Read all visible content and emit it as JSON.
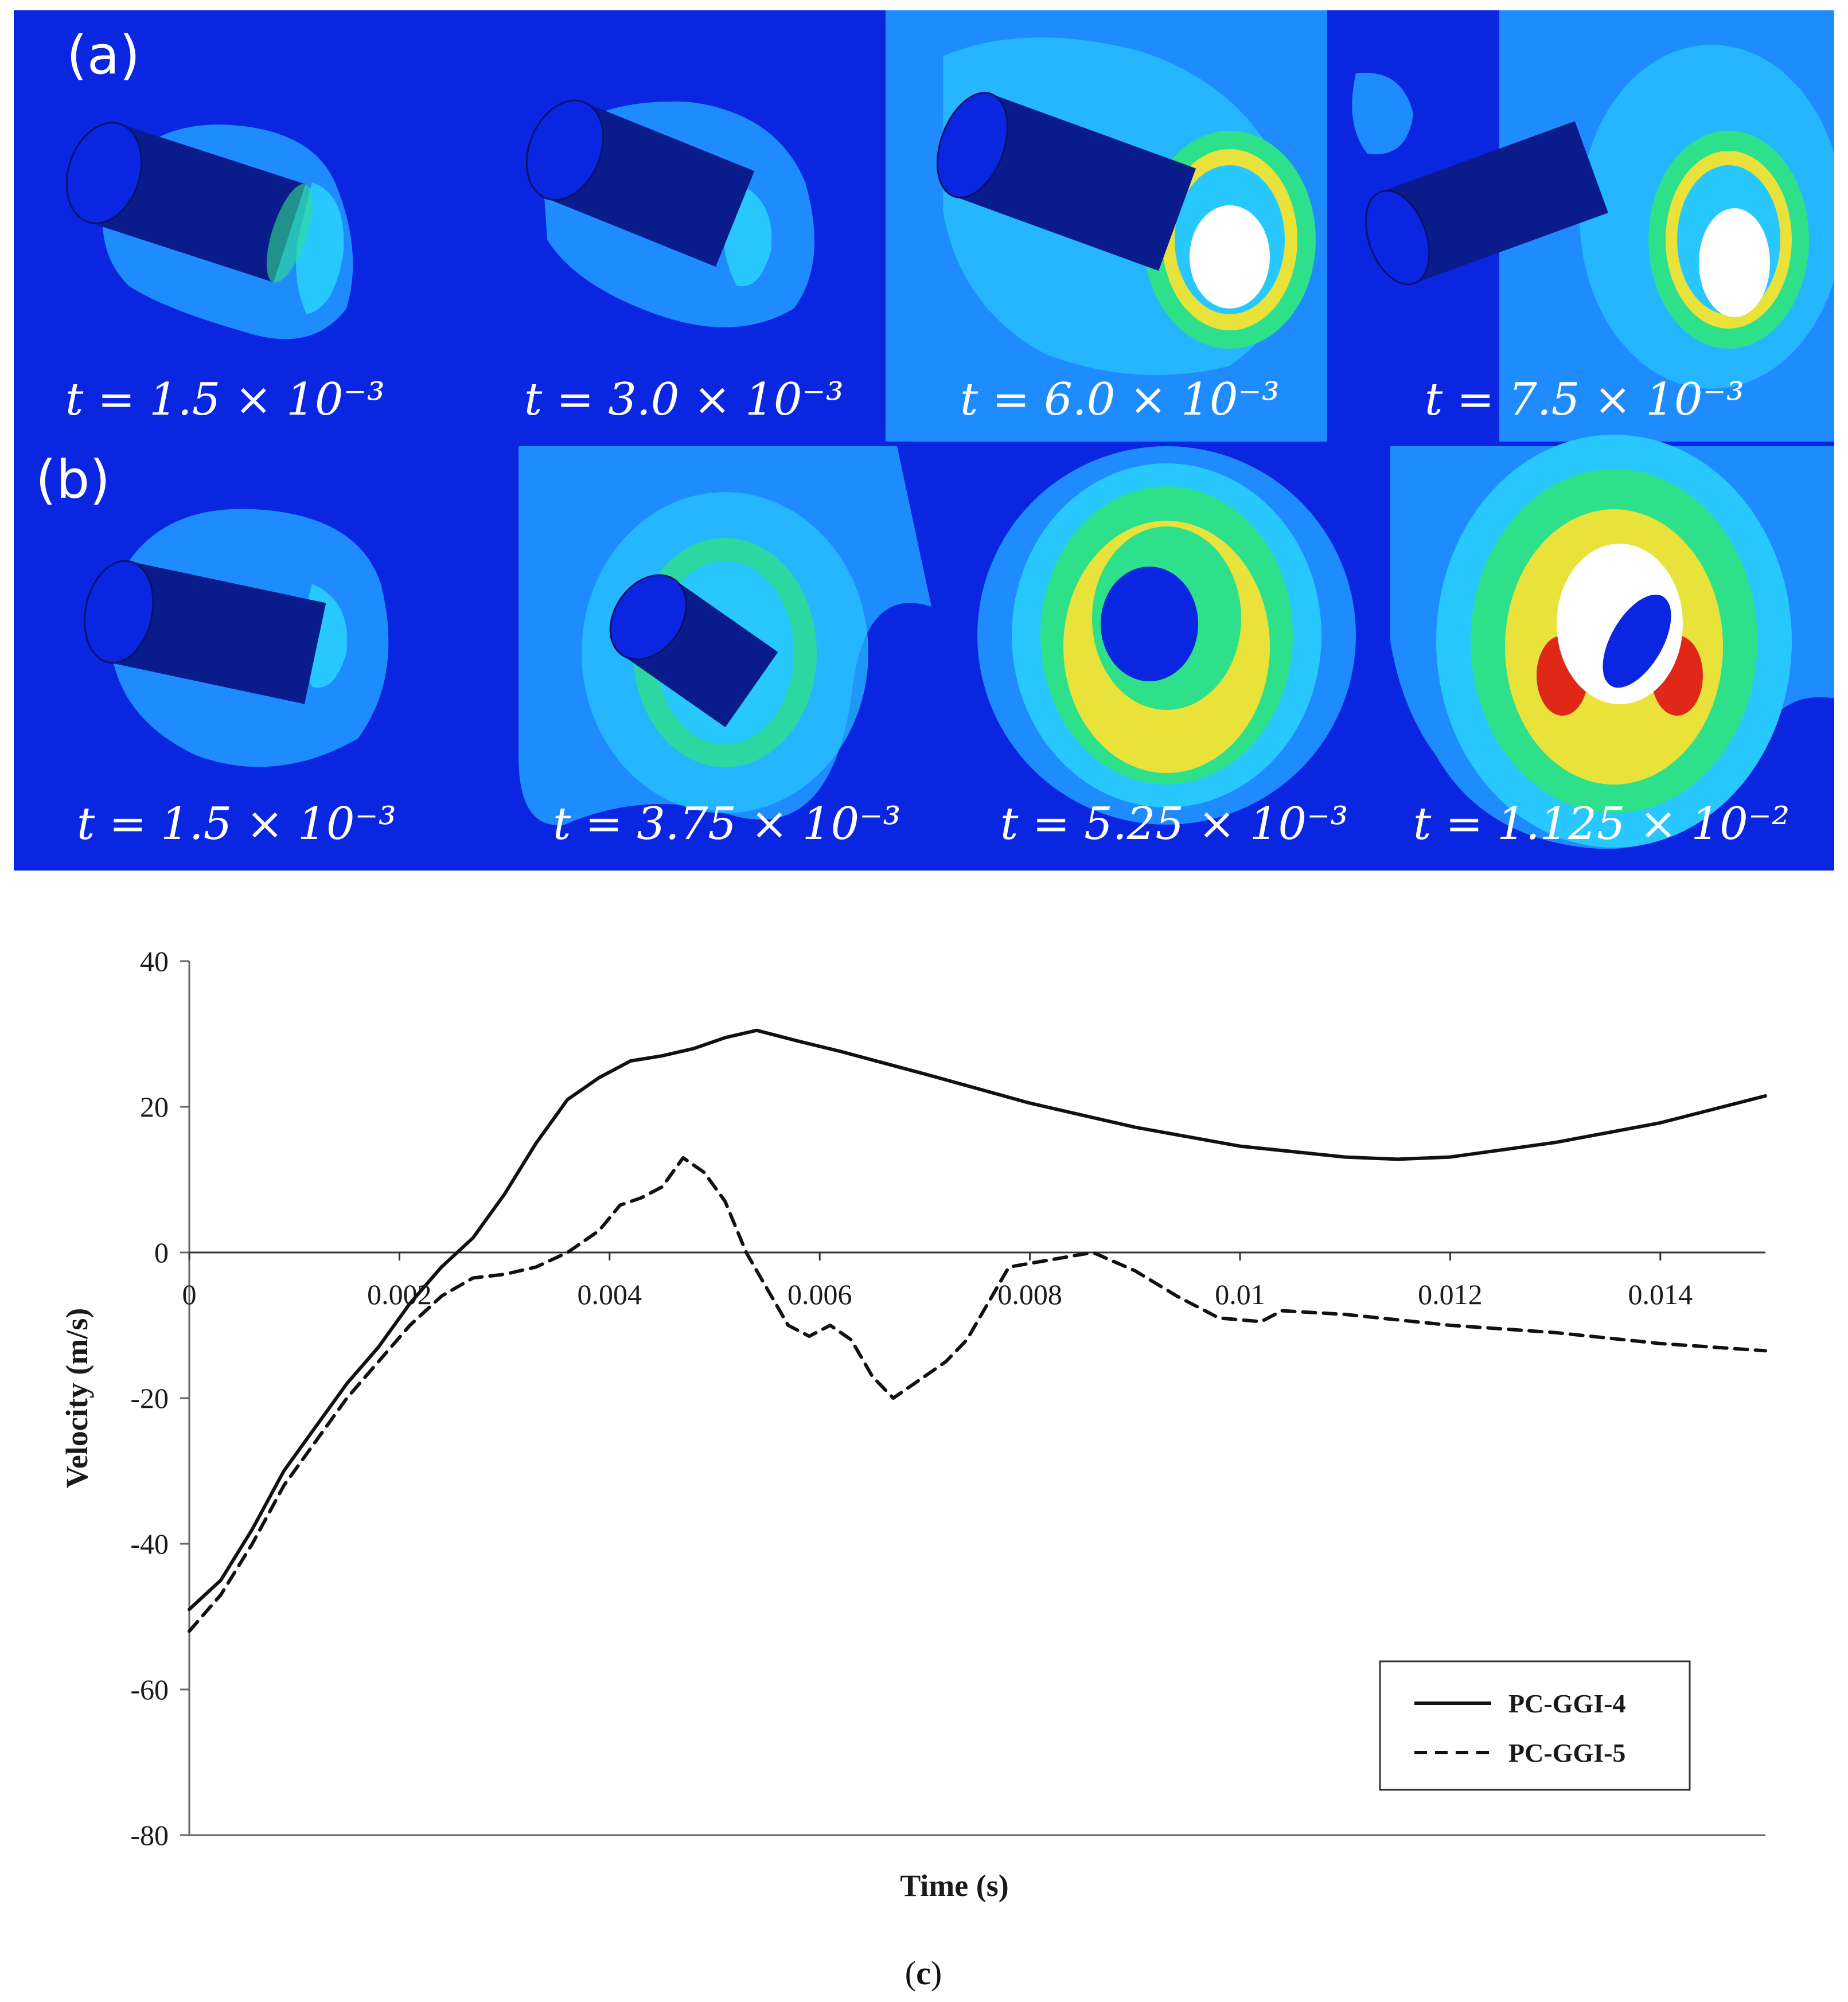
{
  "panels": {
    "a": {
      "tag": "(a)",
      "frames": [
        {
          "time_label": "t = 1.5 × 10⁻³"
        },
        {
          "time_label": "t = 3.0 × 10⁻³"
        },
        {
          "time_label": "t = 6.0 × 10⁻³"
        },
        {
          "time_label": "t = 7.5 × 10⁻³"
        }
      ]
    },
    "b": {
      "tag": "(b)",
      "frames": [
        {
          "time_label": "t = 1.5 × 10⁻³"
        },
        {
          "time_label": "t = 3.75 × 10⁻³"
        },
        {
          "time_label": "t = 5.25 × 10⁻³"
        },
        {
          "time_label": "t = 1.125 × 10⁻²"
        }
      ]
    },
    "c": {
      "caption_open": "(",
      "caption_letter": "c",
      "caption_close": ")"
    }
  },
  "colors": {
    "background_blue": "#0a26e0",
    "contour_light": "#1e8cff",
    "contour_cyan": "#28c8ff",
    "contour_green": "#2ee08a",
    "contour_yellow": "#e8e23a",
    "contour_red": "#e02818",
    "projectile": "#0a1c8c"
  },
  "chart_data": {
    "type": "line",
    "xlabel": "Time (s)",
    "ylabel": "Velocity (m/s)",
    "xlim": [
      0,
      0.015
    ],
    "ylim": [
      -80,
      40
    ],
    "xticks": [
      {
        "value": 0,
        "label": "0"
      },
      {
        "value": 0.002,
        "label": "0.002"
      },
      {
        "value": 0.004,
        "label": "0.004"
      },
      {
        "value": 0.006,
        "label": "0.006"
      },
      {
        "value": 0.008,
        "label": "0.008"
      },
      {
        "value": 0.01,
        "label": "0.01"
      },
      {
        "value": 0.012,
        "label": "0.012"
      },
      {
        "value": 0.014,
        "label": "0.014"
      }
    ],
    "yticks": [
      {
        "value": 40,
        "label": "40"
      },
      {
        "value": 20,
        "label": "20"
      },
      {
        "value": 0,
        "label": "0"
      },
      {
        "value": -20,
        "label": "-20"
      },
      {
        "value": -40,
        "label": "-40"
      },
      {
        "value": -60,
        "label": "-60"
      },
      {
        "value": -80,
        "label": "-80"
      }
    ],
    "legend_position": "bottom-right",
    "series": [
      {
        "name": "PC-GGI-4",
        "style": "solid",
        "points": [
          [
            0,
            -49
          ],
          [
            0.0003,
            -45
          ],
          [
            0.0006,
            -38
          ],
          [
            0.0009,
            -30
          ],
          [
            0.0012,
            -24
          ],
          [
            0.0015,
            -18
          ],
          [
            0.0018,
            -13
          ],
          [
            0.0021,
            -7
          ],
          [
            0.0024,
            -2
          ],
          [
            0.0027,
            2
          ],
          [
            0.003,
            8
          ],
          [
            0.0033,
            15
          ],
          [
            0.0036,
            21
          ],
          [
            0.0039,
            24
          ],
          [
            0.0042,
            26.3
          ],
          [
            0.0045,
            27
          ],
          [
            0.0048,
            28
          ],
          [
            0.0051,
            29.5
          ],
          [
            0.0054,
            30.5
          ],
          [
            0.0058,
            29
          ],
          [
            0.0062,
            27.6
          ],
          [
            0.007,
            24.5
          ],
          [
            0.008,
            20.5
          ],
          [
            0.009,
            17.2
          ],
          [
            0.01,
            14.6
          ],
          [
            0.011,
            13.1
          ],
          [
            0.0115,
            12.8
          ],
          [
            0.012,
            13.1
          ],
          [
            0.013,
            15.1
          ],
          [
            0.014,
            17.8
          ],
          [
            0.015,
            21.5
          ]
        ]
      },
      {
        "name": "PC-GGI-5",
        "style": "dashed",
        "points": [
          [
            0,
            -52
          ],
          [
            0.0003,
            -47
          ],
          [
            0.0006,
            -40
          ],
          [
            0.0009,
            -32
          ],
          [
            0.0012,
            -26
          ],
          [
            0.0015,
            -20
          ],
          [
            0.0018,
            -15
          ],
          [
            0.0021,
            -10
          ],
          [
            0.0024,
            -6
          ],
          [
            0.0027,
            -3.5
          ],
          [
            0.003,
            -3
          ],
          [
            0.0033,
            -2
          ],
          [
            0.0036,
            0
          ],
          [
            0.0039,
            3
          ],
          [
            0.0041,
            6.5
          ],
          [
            0.0043,
            7.5
          ],
          [
            0.0045,
            9
          ],
          [
            0.0047,
            13
          ],
          [
            0.0049,
            11
          ],
          [
            0.0051,
            7
          ],
          [
            0.0053,
            0
          ],
          [
            0.0055,
            -5
          ],
          [
            0.0057,
            -10
          ],
          [
            0.0059,
            -11.5
          ],
          [
            0.0061,
            -10
          ],
          [
            0.0063,
            -12
          ],
          [
            0.0065,
            -17
          ],
          [
            0.0067,
            -20
          ],
          [
            0.0069,
            -18
          ],
          [
            0.0072,
            -15
          ],
          [
            0.0074,
            -12
          ],
          [
            0.0076,
            -7
          ],
          [
            0.0078,
            -2
          ],
          [
            0.0082,
            -1
          ],
          [
            0.0086,
            0
          ],
          [
            0.009,
            -2.5
          ],
          [
            0.0094,
            -6
          ],
          [
            0.0098,
            -9
          ],
          [
            0.0102,
            -9.5
          ],
          [
            0.0104,
            -8
          ],
          [
            0.011,
            -8.5
          ],
          [
            0.012,
            -10
          ],
          [
            0.013,
            -11
          ],
          [
            0.014,
            -12.5
          ],
          [
            0.015,
            -13.5
          ]
        ]
      }
    ]
  }
}
